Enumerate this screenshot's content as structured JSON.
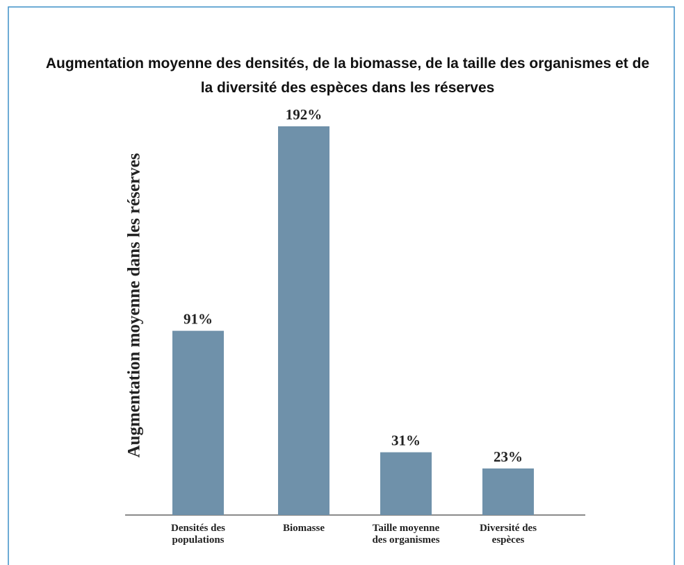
{
  "chart_data": {
    "type": "bar",
    "title": "Augmentation moyenne des densités, de la biomasse, de la taille des organismes et de la diversité des espèces dans les réserves",
    "y_label": "Augmentation moyenne dans les réserves",
    "categories": [
      "Densités des populations",
      "Biomasse",
      "Taille moyenne des organismes",
      "Diversité des espèces"
    ],
    "values": [
      91,
      192,
      31,
      23
    ],
    "value_labels": [
      "91%",
      "192%",
      "31%",
      "23%"
    ],
    "color": "#6f91aa"
  }
}
